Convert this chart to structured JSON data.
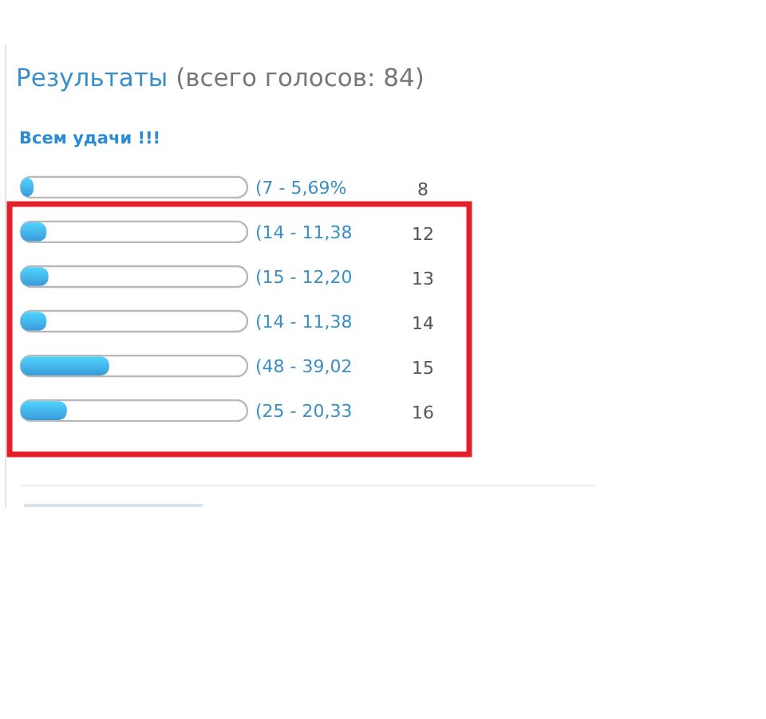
{
  "chart_data": {
    "type": "bar",
    "orientation": "horizontal",
    "title": "Результаты (всего голосов: 84)",
    "subtitle": "Всем удачи !!!",
    "categories": [
      "8",
      "12",
      "13",
      "14",
      "15",
      "16"
    ],
    "values": [
      7,
      14,
      15,
      14,
      48,
      25
    ],
    "value_labels": [
      "(7 - 5,69%",
      "(14 - 11,38",
      "(15 - 12,20",
      "(14 - 11,38",
      "(48 - 39,02",
      "(25 - 20,33"
    ],
    "color": "#3a9ad9"
  }
}
